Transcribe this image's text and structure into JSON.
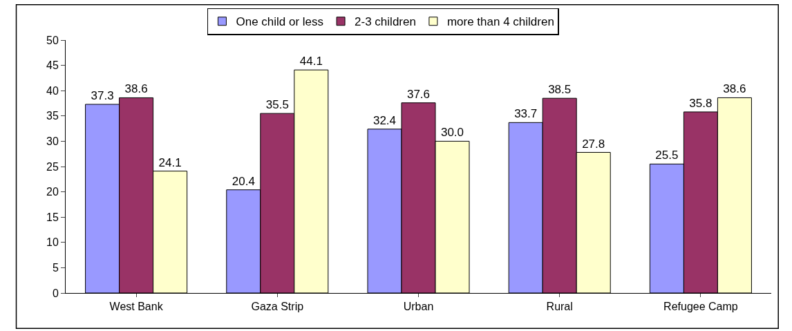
{
  "chart_data": {
    "type": "bar",
    "categories": [
      "West Bank",
      "Gaza Strip",
      "Urban",
      "Rural",
      "Refugee Camp"
    ],
    "series": [
      {
        "name": "One child or less",
        "color": "#9999ff",
        "values": [
          37.3,
          20.4,
          32.4,
          33.7,
          25.5
        ],
        "value_labels": [
          "37.3",
          "20.4",
          "32.4",
          "33.7",
          "25.5"
        ]
      },
      {
        "name": "2-3 children",
        "color": "#993366",
        "values": [
          38.6,
          35.5,
          37.6,
          38.5,
          35.8
        ],
        "value_labels": [
          "38.6",
          "35.5",
          "37.6",
          "38.5",
          "35.8"
        ]
      },
      {
        "name": "more than 4 children",
        "color": "#ffffcc",
        "values": [
          24.1,
          44.1,
          30.0,
          27.8,
          38.6
        ],
        "value_labels": [
          "24.1",
          "44.1",
          "30.0",
          "27.8",
          "38.6"
        ]
      }
    ],
    "ylim": [
      0,
      50
    ],
    "yticks": [
      0,
      5,
      10,
      15,
      20,
      25,
      30,
      35,
      40,
      45,
      50
    ],
    "grid": false,
    "legend": "top"
  }
}
